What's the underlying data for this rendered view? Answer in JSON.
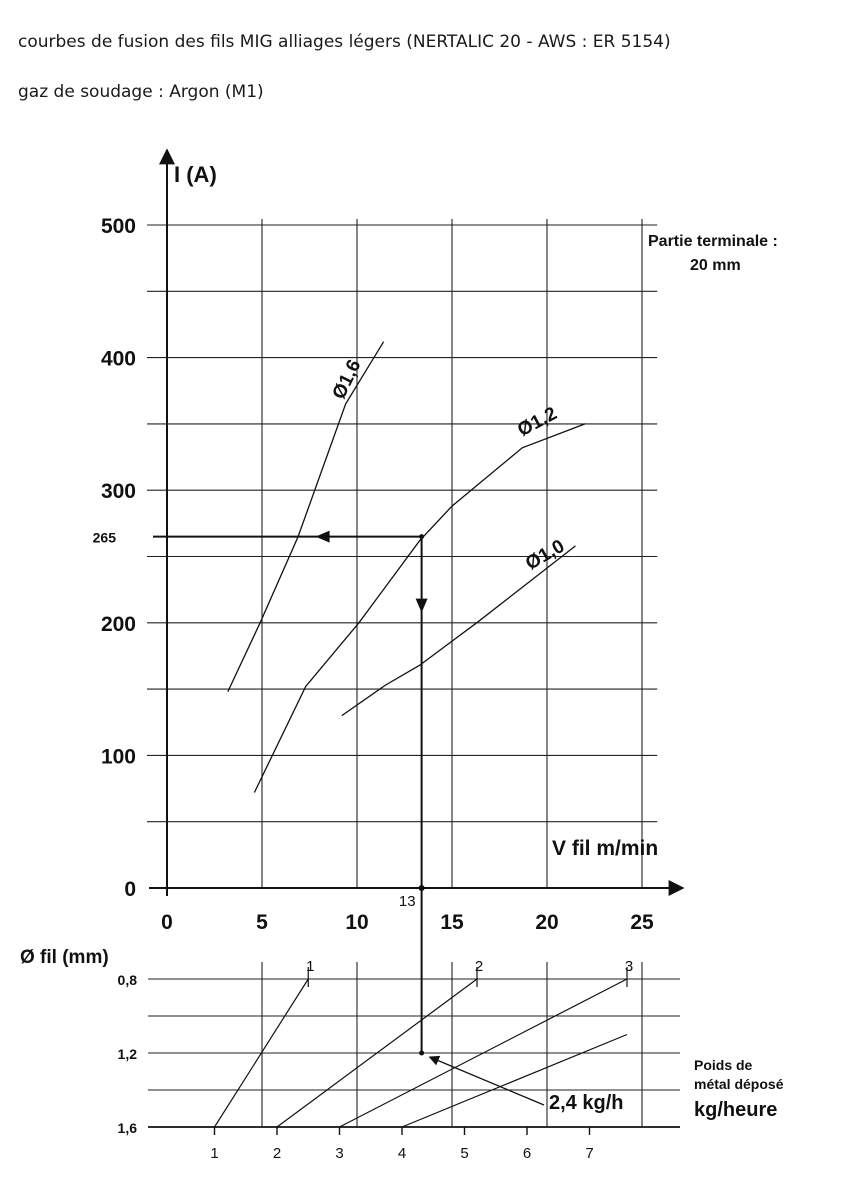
{
  "header": {
    "title": "courbes de fusion des fils MIG alliages légers (NERTALIC 20 - AWS : ER 5154)",
    "subtitle": "gaz de soudage : Argon (M1)"
  },
  "chart_data": [
    {
      "type": "line",
      "ylabel": "I (A)",
      "xlabel": "V fil m/min",
      "x_ticks": [
        "0",
        "5",
        "10",
        "15",
        "20",
        "25"
      ],
      "y_ticks": [
        "0",
        "100",
        "200",
        "300",
        "400",
        "500"
      ],
      "xlim": [
        0,
        25
      ],
      "ylim": [
        0,
        500
      ],
      "grid": true,
      "note_line1": "Partie terminale :",
      "note_line2": "20 mm",
      "series": [
        {
          "name": "Ø1,6",
          "x": [
            3.2,
            4.9,
            6.9,
            9.4,
            11.4
          ],
          "y": [
            148,
            200,
            265,
            365,
            412
          ]
        },
        {
          "name": "Ø1,2",
          "x": [
            4.6,
            7.3,
            10.1,
            13.3,
            15.0,
            18.7,
            22.0
          ],
          "y": [
            72,
            152,
            200,
            262,
            288,
            332,
            350
          ]
        },
        {
          "name": "Ø1,0",
          "x": [
            9.2,
            11.5,
            13.3,
            16.3,
            21.5
          ],
          "y": [
            130,
            153,
            168,
            200,
            258
          ]
        }
      ],
      "example": {
        "current_label": "265",
        "current": 265,
        "speed_label": "13",
        "speed": 13.4
      }
    },
    {
      "type": "line",
      "ylabel": "Ø fil (mm)",
      "xlabel_line1": "Poids de",
      "xlabel_line2": "métal déposé",
      "xlabel_line3": "kg/heure",
      "x_ticks": [
        "1",
        "2",
        "3",
        "4",
        "5",
        "6",
        "7"
      ],
      "y_ticks": [
        "0,8",
        "1,2",
        "1,6"
      ],
      "top_labels": [
        "1",
        "2",
        "3"
      ],
      "series": [
        {
          "name": "1",
          "points": [
            [
              1.0,
              1.6
            ],
            [
              2.5,
              0.8
            ]
          ]
        },
        {
          "name": "2",
          "points": [
            [
              2.0,
              1.6
            ],
            [
              5.2,
              0.8
            ]
          ]
        },
        {
          "name": "3",
          "points": [
            [
              3.0,
              1.6
            ],
            [
              7.6,
              0.8
            ]
          ]
        },
        {
          "name": "",
          "points": [
            [
              4.0,
              1.6
            ],
            [
              7.6,
              1.1
            ]
          ]
        }
      ],
      "example": {
        "rate_label": "2,4 kg/h",
        "rate": 2.4,
        "diameter": 1.2
      }
    }
  ]
}
